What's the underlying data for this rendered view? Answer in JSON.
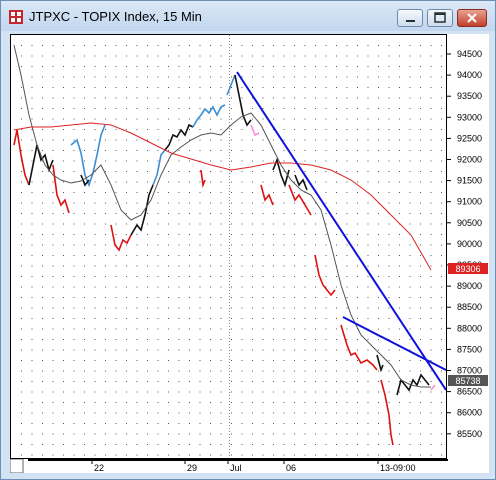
{
  "window": {
    "title": "JTPXC - TOPIX Index, 15 Min"
  },
  "icons": {
    "app": "chart-app-icon",
    "minimize": "minimize-icon",
    "maximize": "maximize-icon",
    "close": "close-icon"
  },
  "y_axis": {
    "labels": [
      "94500",
      "94000",
      "93500",
      "93000",
      "92500",
      "92000",
      "91500",
      "91000",
      "90500",
      "90000",
      "89500",
      "89000",
      "88500",
      "88000",
      "87500",
      "87000",
      "86500",
      "86000",
      "85500"
    ]
  },
  "x_axis": {
    "labels": [
      {
        "text": "22",
        "key": "22"
      },
      {
        "text": "29",
        "key": "29"
      },
      {
        "text": "Jul",
        "key": "jul"
      },
      {
        "text": "06",
        "key": "06"
      },
      {
        "text": "13-09:00",
        "key": "13"
      }
    ]
  },
  "price_markers": {
    "ma_long": "89306",
    "last": "85738"
  },
  "colors": {
    "ma_long": "#dd2222",
    "last_bg": "#555555",
    "trend": "#1111dd",
    "ma_short": "#555555"
  }
}
